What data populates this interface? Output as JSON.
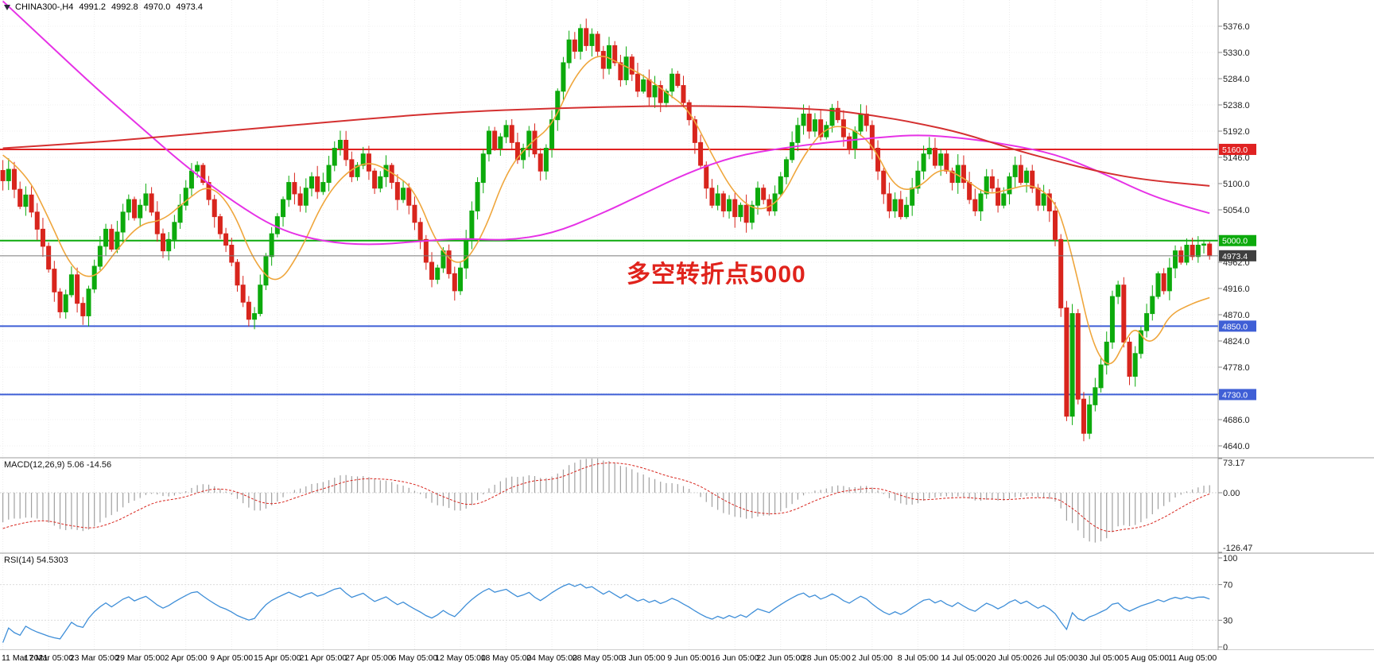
{
  "header": {
    "symbol_period": "CHINA300-,H4",
    "open": "4991.2",
    "high": "4992.8",
    "low": "4970.0",
    "close": "4973.4"
  },
  "annotation": {
    "text": "多空转折点5000"
  },
  "panels": {
    "macd_label": "MACD(12,26,9) 5.06 -14.56",
    "rsi_label": "RSI(14) 54.5303"
  },
  "colors": {
    "bull": "#0caa0c",
    "bear": "#d8251d",
    "ma_fast": "#efa63c",
    "ma_mid": "#e632e6",
    "ma_slow": "#d43030",
    "level_red": "#e02222",
    "level_green": "#0caa0c",
    "level_blue": "#3f5fd6",
    "current_badge": "#3f3f3f",
    "current_line": "#7a7a7a",
    "macd_histogram": "#a0a0a0",
    "macd_signal": "#d8251d",
    "rsi_line": "#3e8ed8",
    "annotation": "#e0231c"
  },
  "chart_data": {
    "type": "candlestick",
    "symbol": "CHINA300-",
    "timeframe": "H4",
    "price_axis": {
      "min": 4640,
      "max": 5376,
      "step": 46,
      "hidden_labels": [
        5008,
        4732
      ]
    },
    "levels": [
      {
        "price": 5160,
        "label": "5160.0",
        "color_key": "level_red",
        "width": 2
      },
      {
        "price": 5000,
        "label": "5000.0",
        "color_key": "level_green",
        "width": 2
      },
      {
        "price": 4850,
        "label": "4850.0",
        "color_key": "level_blue",
        "width": 2
      },
      {
        "price": 4730,
        "label": "4730.0",
        "color_key": "level_blue",
        "width": 2
      }
    ],
    "current_price": {
      "price": 4973.4,
      "label": "4973.4"
    },
    "candles_close": [
      5105,
      5125,
      5090,
      5060,
      5080,
      5050,
      5020,
      4990,
      4950,
      4910,
      4875,
      4905,
      4940,
      4890,
      4868,
      4915,
      4955,
      4990,
      5020,
      4985,
      5015,
      5050,
      5072,
      5040,
      5062,
      5082,
      5050,
      5012,
      4982,
      5002,
      5032,
      5062,
      5092,
      5122,
      5132,
      5102,
      5072,
      5042,
      5012,
      4992,
      4962,
      4922,
      4892,
      4862,
      4872,
      4922,
      4972,
      5012,
      5042,
      5072,
      5102,
      5082,
      5062,
      5092,
      5112,
      5086,
      5102,
      5132,
      5162,
      5176,
      5142,
      5112,
      5132,
      5152,
      5122,
      5092,
      5112,
      5132,
      5102,
      5072,
      5092,
      5062,
      5032,
      5002,
      4962,
      4932,
      4952,
      4982,
      4942,
      4912,
      4952,
      5002,
      5052,
      5102,
      5152,
      5192,
      5162,
      5182,
      5202,
      5172,
      5142,
      5162,
      5192,
      5152,
      5122,
      5162,
      5212,
      5262,
      5312,
      5352,
      5332,
      5372,
      5342,
      5362,
      5332,
      5302,
      5342,
      5312,
      5282,
      5322,
      5292,
      5262,
      5282,
      5252,
      5272,
      5242,
      5262,
      5292,
      5272,
      5242,
      5212,
      5172,
      5132,
      5092,
      5062,
      5082,
      5052,
      5072,
      5042,
      5062,
      5032,
      5062,
      5092,
      5072,
      5052,
      5082,
      5112,
      5142,
      5172,
      5202,
      5222,
      5192,
      5212,
      5182,
      5202,
      5232,
      5212,
      5182,
      5162,
      5192,
      5222,
      5202,
      5162,
      5122,
      5082,
      5052,
      5072,
      5042,
      5062,
      5092,
      5122,
      5152,
      5162,
      5132,
      5152,
      5122,
      5102,
      5132,
      5102,
      5072,
      5052,
      5082,
      5112,
      5092,
      5062,
      5082,
      5112,
      5132,
      5102,
      5122,
      5092,
      5062,
      5082,
      5052,
      5002,
      4882,
      4692,
      4872,
      4722,
      4662,
      4712,
      4742,
      4782,
      4822,
      4902,
      4922,
      4822,
      4762,
      4802,
      4842,
      4872,
      4902,
      4942,
      4912,
      4952,
      4982,
      4962,
      4992,
      4972,
      4992,
      4994,
      4973.4
    ],
    "warmup_closes": [
      5600,
      5590,
      5575,
      5560,
      5545,
      5530,
      5510,
      5490,
      5470,
      5450,
      5430,
      5410,
      5390,
      5365,
      5340,
      5315,
      5290,
      5265,
      5240,
      5215,
      5195,
      5180,
      5165,
      5150,
      5140,
      5130,
      5125,
      5120,
      5118,
      5115,
      5112,
      5110,
      5108,
      5106,
      5104,
      5102,
      5100,
      5100,
      5100,
      5100
    ],
    "ma_lines": [
      {
        "name": "ma-fast-orange",
        "color_key": "ma_fast",
        "width": 1.6,
        "points": [
          [
            0,
            5150
          ],
          [
            4,
            5120
          ],
          [
            8,
            5040
          ],
          [
            12,
            4950
          ],
          [
            16,
            4930
          ],
          [
            20,
            4985
          ],
          [
            24,
            5030
          ],
          [
            28,
            5035
          ],
          [
            32,
            5070
          ],
          [
            36,
            5100
          ],
          [
            40,
            5060
          ],
          [
            44,
            4960
          ],
          [
            48,
            4920
          ],
          [
            52,
            4980
          ],
          [
            56,
            5070
          ],
          [
            60,
            5120
          ],
          [
            64,
            5140
          ],
          [
            68,
            5120
          ],
          [
            72,
            5090
          ],
          [
            76,
            4990
          ],
          [
            80,
            4950
          ],
          [
            84,
            5010
          ],
          [
            88,
            5120
          ],
          [
            92,
            5170
          ],
          [
            96,
            5200
          ],
          [
            100,
            5290
          ],
          [
            104,
            5330
          ],
          [
            108,
            5310
          ],
          [
            112,
            5290
          ],
          [
            116,
            5260
          ],
          [
            120,
            5230
          ],
          [
            124,
            5150
          ],
          [
            128,
            5080
          ],
          [
            132,
            5050
          ],
          [
            136,
            5070
          ],
          [
            140,
            5150
          ],
          [
            144,
            5200
          ],
          [
            148,
            5200
          ],
          [
            152,
            5170
          ],
          [
            156,
            5090
          ],
          [
            160,
            5090
          ],
          [
            164,
            5130
          ],
          [
            168,
            5110
          ],
          [
            172,
            5080
          ],
          [
            176,
            5090
          ],
          [
            180,
            5100
          ],
          [
            184,
            5070
          ],
          [
            186,
            5010
          ],
          [
            188,
            4930
          ],
          [
            190,
            4840
          ],
          [
            192,
            4790
          ],
          [
            194,
            4780
          ],
          [
            196,
            4820
          ],
          [
            198,
            4850
          ],
          [
            200,
            4820
          ],
          [
            202,
            4830
          ],
          [
            204,
            4870
          ],
          [
            208,
            4890
          ],
          [
            211,
            4900
          ]
        ]
      },
      {
        "name": "ma-mid-magenta",
        "color_key": "ma_mid",
        "width": 2,
        "points": [
          [
            0,
            5420
          ],
          [
            8,
            5345
          ],
          [
            16,
            5270
          ],
          [
            24,
            5200
          ],
          [
            32,
            5130
          ],
          [
            40,
            5070
          ],
          [
            48,
            5020
          ],
          [
            56,
            4998
          ],
          [
            64,
            4992
          ],
          [
            72,
            4998
          ],
          [
            80,
            5004
          ],
          [
            88,
            5000
          ],
          [
            96,
            5012
          ],
          [
            104,
            5044
          ],
          [
            112,
            5082
          ],
          [
            120,
            5120
          ],
          [
            128,
            5148
          ],
          [
            136,
            5162
          ],
          [
            144,
            5172
          ],
          [
            152,
            5180
          ],
          [
            160,
            5186
          ],
          [
            168,
            5180
          ],
          [
            176,
            5168
          ],
          [
            184,
            5152
          ],
          [
            192,
            5120
          ],
          [
            200,
            5082
          ],
          [
            206,
            5062
          ],
          [
            211,
            5048
          ]
        ]
      },
      {
        "name": "ma-slow-red",
        "color_key": "ma_slow",
        "width": 2,
        "points": [
          [
            0,
            5162
          ],
          [
            16,
            5172
          ],
          [
            32,
            5186
          ],
          [
            48,
            5200
          ],
          [
            64,
            5214
          ],
          [
            80,
            5226
          ],
          [
            96,
            5232
          ],
          [
            112,
            5236
          ],
          [
            128,
            5236
          ],
          [
            144,
            5230
          ],
          [
            152,
            5220
          ],
          [
            160,
            5206
          ],
          [
            168,
            5188
          ],
          [
            176,
            5162
          ],
          [
            184,
            5140
          ],
          [
            192,
            5120
          ],
          [
            200,
            5106
          ],
          [
            211,
            5096
          ]
        ]
      }
    ],
    "macd": {
      "fast": 12,
      "slow": 26,
      "signal": 9,
      "range": [
        -126.47,
        73.17
      ],
      "axis": [
        {
          "value": 73.17,
          "label": "73.17"
        },
        {
          "value": 0,
          "label": "0.00"
        },
        {
          "value": -126.47,
          "label": "-126.47"
        }
      ]
    },
    "rsi": {
      "period": 14,
      "levels": [
        30,
        70
      ],
      "axis": [
        {
          "value": 100,
          "label": "100"
        },
        {
          "value": 70,
          "label": "70"
        },
        {
          "value": 30,
          "label": "30"
        },
        {
          "value": 0,
          "label": "0"
        }
      ]
    },
    "time_labels": [
      "11 Mar 2021",
      "17 Mar 05:00",
      "23 Mar 05:00",
      "29 Mar 05:00",
      "2 Apr 05:00",
      "9 Apr 05:00",
      "15 Apr 05:00",
      "21 Apr 05:00",
      "27 Apr 05:00",
      "6 May 05:00",
      "12 May 05:00",
      "18 May 05:00",
      "24 May 05:00",
      "28 May 05:00",
      "3 Jun 05:00",
      "9 Jun 05:00",
      "16 Jun 05:00",
      "22 Jun 05:00",
      "28 Jun 05:00",
      "2 Jul 05:00",
      "8 Jul 05:00",
      "14 Jul 05:00",
      "20 Jul 05:00",
      "26 Jul 05:00",
      "30 Jul 05:00",
      "5 Aug 05:00",
      "11 Aug 05:00"
    ]
  }
}
